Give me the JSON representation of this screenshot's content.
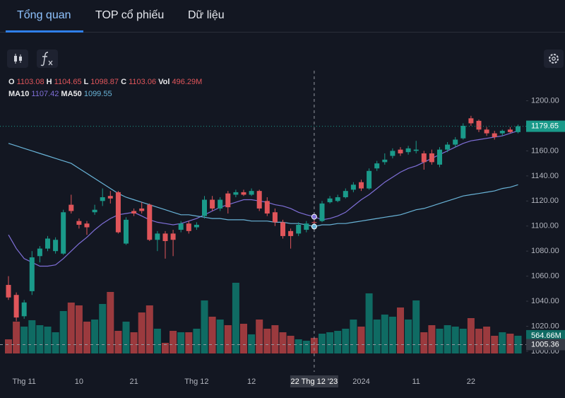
{
  "tabs": [
    "Tổng quan",
    "TOP cổ phiếu",
    "Dữ liệu"
  ],
  "chart_data": {
    "type": "candlestick",
    "categories": [
      null,
      null,
      "Thg 11",
      null,
      null,
      null,
      null,
      null,
      null,
      "10",
      null,
      null,
      null,
      null,
      null,
      null,
      "21",
      null,
      null,
      null,
      null,
      null,
      null,
      null,
      "Thg 12",
      null,
      null,
      null,
      null,
      null,
      null,
      "12",
      null,
      null,
      null,
      null,
      null,
      null,
      null,
      "22 Thg 12 '23",
      null,
      null,
      null,
      null,
      null,
      "2024",
      null,
      null,
      null,
      null,
      null,
      null,
      "11",
      null,
      null,
      null,
      null,
      null,
      null,
      "22",
      null,
      null,
      null,
      null,
      null,
      null
    ],
    "open": [
      1053,
      1045,
      1028,
      1048,
      1076,
      1082,
      1080,
      1078,
      1117,
      1104,
      1102,
      1111,
      1120,
      1124,
      1127,
      1086,
      1112,
      1114,
      1117,
      1089,
      1094,
      1094,
      1097,
      1102,
      1099,
      1108,
      1121,
      1114,
      1126,
      1125,
      1127,
      1125,
      1128,
      1120,
      1111,
      1103,
      1096,
      1094,
      1097,
      1103.08,
      1104,
      1119,
      1120,
      1123,
      1129,
      1135,
      1130,
      1146,
      1151,
      1156,
      1161,
      1159,
      1160,
      1158,
      1158,
      1149,
      1161,
      1165,
      1170,
      1186,
      1184,
      1177,
      1174,
      1174,
      1177,
      1175
    ],
    "high": [
      1060,
      1047,
      1041,
      1080,
      1084,
      1092,
      1091,
      1113,
      1125,
      1106,
      1104,
      1117,
      1130,
      1128,
      1128,
      1107,
      1114,
      1119,
      1118,
      1096,
      1096,
      1097,
      1104,
      1104,
      1103,
      1124,
      1124,
      1123,
      1128,
      1129,
      1129,
      1130,
      1129,
      1123,
      1114,
      1105,
      1098,
      1103,
      1104,
      1104.65,
      1120,
      1124,
      1125,
      1130,
      1135,
      1137,
      1146,
      1152,
      1158,
      1162,
      1163,
      1164,
      1168,
      1160,
      1161,
      1163,
      1167,
      1171,
      1182,
      1188,
      1185,
      1179,
      1176,
      1177,
      1179,
      1181
    ],
    "low": [
      1041,
      1024,
      1026,
      1045,
      1071,
      1080,
      1078,
      1077,
      1110,
      1098,
      1093,
      1109,
      1116,
      1118,
      1094,
      1085,
      1108,
      1110,
      1088,
      1080,
      1074,
      1076,
      1095,
      1094,
      1097,
      1106,
      1112,
      1112,
      1110,
      1123,
      1124,
      1124,
      1112,
      1108,
      1100,
      1090,
      1082,
      1092,
      1095,
      1098.87,
      1103,
      1118,
      1119,
      1122,
      1127,
      1128,
      1129,
      1144,
      1149,
      1154,
      1156,
      1157,
      1158,
      1145,
      1149,
      1147,
      1159,
      1163,
      1169,
      1180,
      1175,
      1172,
      1169,
      1172,
      1174,
      1174
    ],
    "close": [
      1043,
      1027,
      1039,
      1075,
      1082,
      1090,
      1089,
      1111,
      1112,
      1101,
      1099,
      1113,
      1123,
      1122,
      1095,
      1105,
      1110,
      1112,
      1089,
      1094,
      1088,
      1089,
      1102,
      1096,
      1101,
      1121,
      1114,
      1121,
      1115,
      1127,
      1125,
      1128,
      1114,
      1110,
      1103,
      1092,
      1092,
      1101,
      1102,
      1103.06,
      1118,
      1122,
      1123,
      1128,
      1133,
      1130,
      1144,
      1150,
      1153,
      1160,
      1158,
      1162,
      1161,
      1151,
      1151,
      1161,
      1165,
      1169,
      1180,
      1182,
      1177,
      1174,
      1171,
      1176,
      1175,
      1179.65
    ],
    "volume": {
      "values": [
        450,
        1013,
        855,
        1058,
        900,
        855,
        675,
        1350,
        1620,
        1530,
        1013,
        1080,
        1575,
        1958,
        720,
        1013,
        675,
        1305,
        1530,
        788,
        338,
        720,
        675,
        675,
        788,
        1688,
        1170,
        1080,
        900,
        2250,
        945,
        608,
        1080,
        788,
        900,
        675,
        563,
        450,
        405,
        496.29,
        630,
        675,
        720,
        788,
        1080,
        855,
        1913,
        1080,
        1238,
        1170,
        1463,
        1080,
        1688,
        675,
        900,
        788,
        900,
        855,
        788,
        1125,
        788,
        855,
        563,
        675,
        630,
        564.66
      ],
      "value_labels": [
        null,
        null,
        null,
        null,
        null,
        null,
        null,
        null,
        null,
        null,
        null,
        null,
        null,
        null,
        null,
        null,
        null,
        null,
        null,
        null,
        null,
        null,
        null,
        null,
        null,
        null,
        null,
        null,
        null,
        null,
        null,
        null,
        null,
        null,
        null,
        null,
        null,
        null,
        null,
        "496.29M",
        null,
        null,
        null,
        null,
        null,
        null,
        null,
        null,
        null,
        null,
        null,
        null,
        null,
        null,
        null,
        null,
        null,
        null,
        null,
        null,
        null,
        null,
        null,
        null,
        null,
        "564.66M"
      ]
    },
    "series": [
      {
        "name": "MA10",
        "color": "#7f6fd8",
        "values": [
          1093,
          1082,
          1074,
          1071,
          1068,
          1068,
          1069,
          1074,
          1080,
          1086,
          1091,
          1097,
          1102,
          1106,
          1109,
          1110,
          1111,
          1108,
          1105,
          1103,
          1102,
          1101,
          1102,
          1104,
          1106,
          1109,
          1112,
          1115,
          1117,
          1119,
          1121,
          1121,
          1120,
          1119,
          1117,
          1116,
          1114,
          1111,
          1109,
          1107.42,
          1105,
          1106,
          1108,
          1111,
          1116,
          1121,
          1125,
          1130,
          1135,
          1139,
          1143,
          1146,
          1148,
          1151,
          1154,
          1157,
          1160,
          1163,
          1166,
          1168,
          1169,
          1170,
          1171,
          1172,
          1174,
          1176
        ]
      },
      {
        "name": "MA50",
        "color": "#69b4d8",
        "values": [
          1166,
          1164,
          1162,
          1160,
          1158,
          1156,
          1154,
          1152,
          1150,
          1146,
          1142,
          1138,
          1134,
          1130,
          1126,
          1123,
          1121,
          1119,
          1117,
          1115,
          1113,
          1111,
          1109,
          1109,
          1108,
          1107,
          1106,
          1106,
          1105,
          1105,
          1105,
          1104,
          1104,
          1104,
          1103,
          1103,
          1102,
          1102,
          1101,
          1099.55,
          1101,
          1101,
          1102,
          1102,
          1103,
          1104,
          1105,
          1106,
          1107,
          1108,
          1109,
          1111,
          1113,
          1114,
          1116,
          1118,
          1120,
          1122,
          1124,
          1125,
          1126,
          1127,
          1128,
          1130,
          1131,
          1133
        ]
      }
    ],
    "legend_labels": {
      "open": "O",
      "high": "H",
      "low": "L",
      "close": "C",
      "volume": "Vol"
    },
    "up_color": "#1a9a8a",
    "down_color": "#e0555a",
    "volume_up_color": "#0f6b63",
    "volume_down_color": "#9b3a3e",
    "ylim": [
      987,
      1224
    ],
    "yticks": [
      {
        "value": 1000,
        "label": "1000.00"
      },
      {
        "value": 1020,
        "label": "1020.00"
      },
      {
        "value": 1040,
        "label": "1040.00"
      },
      {
        "value": 1060,
        "label": "1060.00"
      },
      {
        "value": 1080,
        "label": "1080.00"
      },
      {
        "value": 1100,
        "label": "1100.00"
      },
      {
        "value": 1120,
        "label": "1120.00"
      },
      {
        "value": 1140,
        "label": "1140.00"
      },
      {
        "value": 1160,
        "label": "1160.00"
      },
      {
        "value": 1180,
        "label": "1180.00"
      },
      {
        "value": 1200,
        "label": "1200.00"
      }
    ],
    "y2lim": [
      0,
      9450
    ],
    "crosshair": {
      "index": 39,
      "price": 1005.36
    }
  }
}
